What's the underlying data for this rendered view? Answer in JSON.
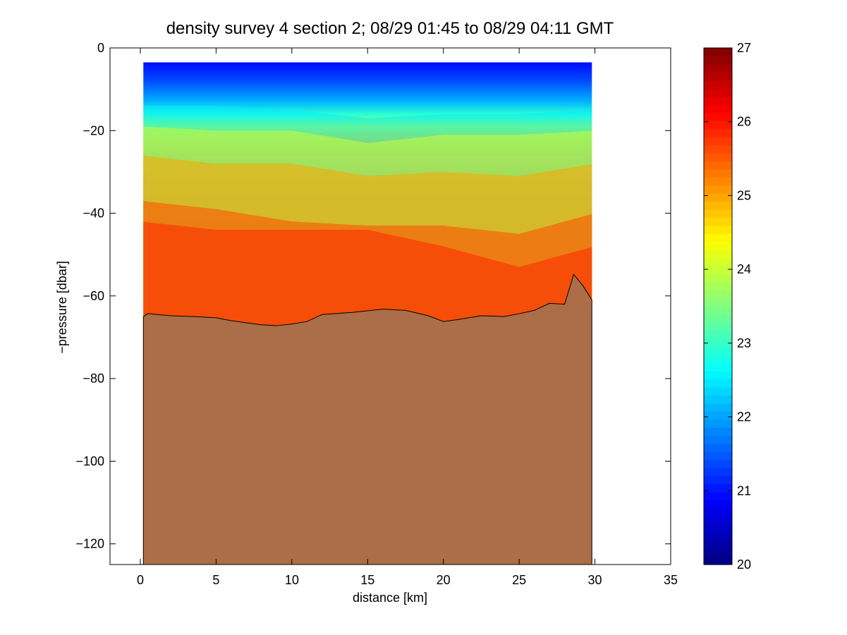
{
  "chart_data": {
    "type": "heatmap",
    "title": "density survey 4 section 2; 08/29 01:45 to 08/29 04:11 GMT",
    "xlabel": "distance [km]",
    "ylabel": "−pressure [dbar]",
    "xlim": [
      -2,
      35
    ],
    "ylim": [
      -125,
      0
    ],
    "x_ticks": [
      0,
      5,
      10,
      15,
      20,
      25,
      30,
      35
    ],
    "y_ticks": [
      0,
      -20,
      -40,
      -60,
      -80,
      -100,
      -120
    ],
    "x_tick_labels": [
      "0",
      "5",
      "10",
      "15",
      "20",
      "25",
      "30",
      "35"
    ],
    "y_tick_labels": [
      "0",
      "−20",
      "−40",
      "−60",
      "−80",
      "−100",
      "−120"
    ],
    "colorbar": {
      "colormap": "jet",
      "clim": [
        20,
        27
      ],
      "ticks": [
        20,
        21,
        22,
        23,
        24,
        25,
        26,
        27
      ],
      "tick_labels": [
        "20",
        "21",
        "22",
        "23",
        "24",
        "25",
        "26",
        "27"
      ]
    },
    "data_extent": {
      "x": [
        0.2,
        29.8
      ],
      "z_top": -3.5,
      "z_bottom": -63
    },
    "density_profile_depth": [
      -3,
      -8,
      -13,
      -16,
      -19,
      -22,
      -26,
      -32,
      -38,
      -45,
      -52,
      -60,
      -66
    ],
    "density_profile_value": [
      20.9,
      21.4,
      22.1,
      22.9,
      24.0,
      24.7,
      25.1,
      25.4,
      25.6,
      25.75,
      25.85,
      25.9,
      25.95
    ],
    "isopycnal_layers": [
      {
        "sigma": 22.5,
        "x": [
          0,
          5,
          10,
          15,
          20,
          25,
          30
        ],
        "z": [
          -14,
          -14,
          -15,
          -17,
          -16,
          -16,
          -15
        ]
      },
      {
        "sigma": 24.0,
        "x": [
          0,
          5,
          10,
          15,
          20,
          25,
          30
        ],
        "z": [
          -19,
          -20,
          -20,
          -23,
          -21,
          -21,
          -20
        ]
      },
      {
        "sigma": 25.0,
        "x": [
          0,
          5,
          10,
          15,
          20,
          25,
          30
        ],
        "z": [
          -26,
          -28,
          -28,
          -31,
          -30,
          -31,
          -28
        ]
      },
      {
        "sigma": 25.6,
        "x": [
          0,
          5,
          10,
          15,
          20,
          25,
          30
        ],
        "z": [
          -37,
          -39,
          -42,
          -43,
          -43,
          -45,
          -40
        ]
      },
      {
        "sigma": 25.85,
        "x": [
          0,
          5,
          10,
          15,
          20,
          25,
          30
        ],
        "z": [
          -42,
          -44,
          -44,
          -44,
          -48,
          -53,
          -48
        ]
      }
    ],
    "bathymetry": {
      "color": "#ab6e48",
      "x": [
        0.2,
        0.5,
        2.0,
        3.5,
        5.0,
        6.0,
        7.0,
        8.0,
        9.0,
        10.0,
        11.0,
        12.0,
        14.0,
        16.0,
        17.5,
        19.0,
        20.0,
        21.0,
        22.5,
        24.0,
        25.0,
        26.0,
        27.0,
        28.0,
        28.6,
        29.2,
        29.8
      ],
      "z": [
        -65,
        -64.3,
        -64.8,
        -65,
        -65.3,
        -66,
        -66.5,
        -67,
        -67.2,
        -66.8,
        -66.2,
        -64.5,
        -64,
        -63.2,
        -63.5,
        -64.8,
        -66.2,
        -65.7,
        -64.8,
        -65,
        -64.3,
        -63.5,
        -61.8,
        -62,
        -54.8,
        -57.5,
        -61
      ]
    }
  }
}
